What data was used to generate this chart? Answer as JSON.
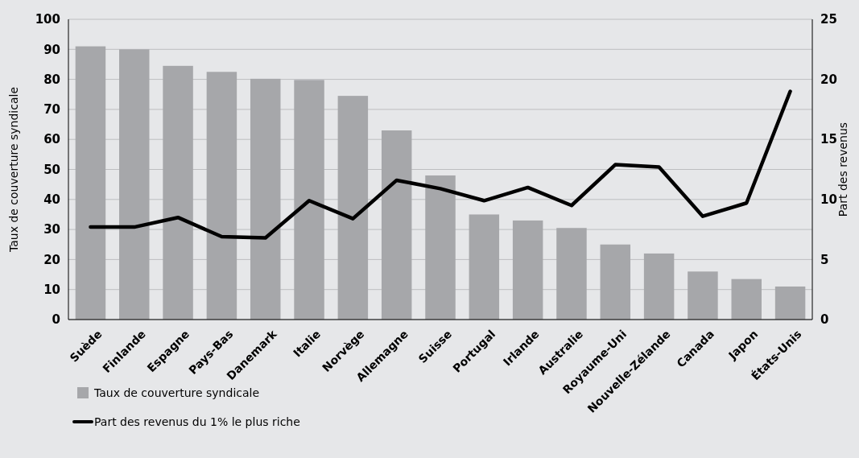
{
  "chart_data": {
    "type": "bar",
    "ylabel": "Taux de couverture syndicale",
    "y2label": "Part des revenus",
    "categories": [
      "Suède",
      "Finlande",
      "Espagne",
      "Pays-Bas",
      "Danemark",
      "Italie",
      "Norvège",
      "Allemagne",
      "Suisse",
      "Portugal",
      "Irlande",
      "Australie",
      "Royaume-Uni",
      "Nouvelle-Zélande",
      "Canada",
      "Japon",
      "États-Unis"
    ],
    "series": [
      {
        "name": "Taux de couverture syndicale",
        "color": "#a6a7aa",
        "values": [
          91,
          90,
          84.5,
          82.5,
          80.2,
          79.8,
          74.5,
          63,
          48,
          35,
          33,
          30.5,
          25,
          22,
          16,
          13.5,
          11
        ]
      },
      {
        "name": "Part des revenus du 1% le plus riche",
        "type": "line",
        "axis": "y2",
        "color": "#000000",
        "values": [
          7.7,
          7.7,
          8.5,
          6.9,
          6.8,
          9.9,
          8.4,
          11.6,
          10.9,
          9.9,
          11.0,
          9.5,
          12.9,
          12.7,
          8.6,
          9.7,
          19.0
        ]
      }
    ],
    "ylim": [
      0,
      100
    ],
    "yticks": [
      0,
      10,
      20,
      30,
      40,
      50,
      60,
      70,
      80,
      90,
      100
    ],
    "y2lim": [
      0,
      25
    ],
    "y2ticks": [
      0,
      5,
      10,
      15,
      20,
      25
    ],
    "grid": "y",
    "legend": "bottom left",
    "marker": "none",
    "line_style": "solid"
  }
}
